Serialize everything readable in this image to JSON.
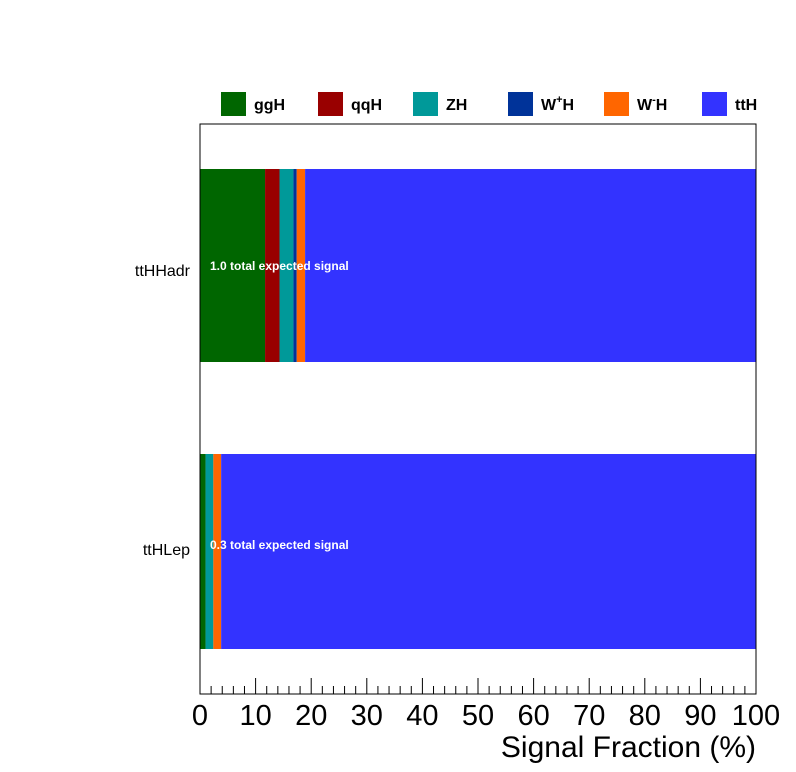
{
  "chart_data": {
    "type": "bar",
    "orientation": "horizontal",
    "stacked": true,
    "title": "",
    "xlabel": "Signal Fraction (%)",
    "ylabel": "",
    "xlim": [
      0,
      100
    ],
    "x_ticks": [
      "0",
      "10",
      "20",
      "30",
      "40",
      "50",
      "60",
      "70",
      "80",
      "90",
      "100"
    ],
    "grid": false,
    "legend_placement": "top",
    "categories": [
      "ttHHadr",
      "ttHLep"
    ],
    "annotations": [
      "1.0 total expected signal",
      "0.3 total expected signal"
    ],
    "series": [
      {
        "name": "ggH",
        "sup": "",
        "color": "#006600",
        "values": [
          11.7,
          1.0
        ]
      },
      {
        "name": "qqH",
        "sup": "",
        "color": "#990000",
        "values": [
          2.6,
          0.0
        ]
      },
      {
        "name": "ZH",
        "sup": "",
        "color": "#009999",
        "values": [
          2.5,
          1.4
        ]
      },
      {
        "name": "W",
        "sup": "+",
        "suffix": "H",
        "color": "#003399",
        "values": [
          0.6,
          0.0
        ]
      },
      {
        "name": "W",
        "sup": "-",
        "suffix": "H",
        "color": "#ff6600",
        "values": [
          1.5,
          1.4
        ]
      },
      {
        "name": "ttH",
        "sup": "",
        "color": "#3333ff",
        "values": [
          81.1,
          96.2
        ]
      }
    ]
  }
}
